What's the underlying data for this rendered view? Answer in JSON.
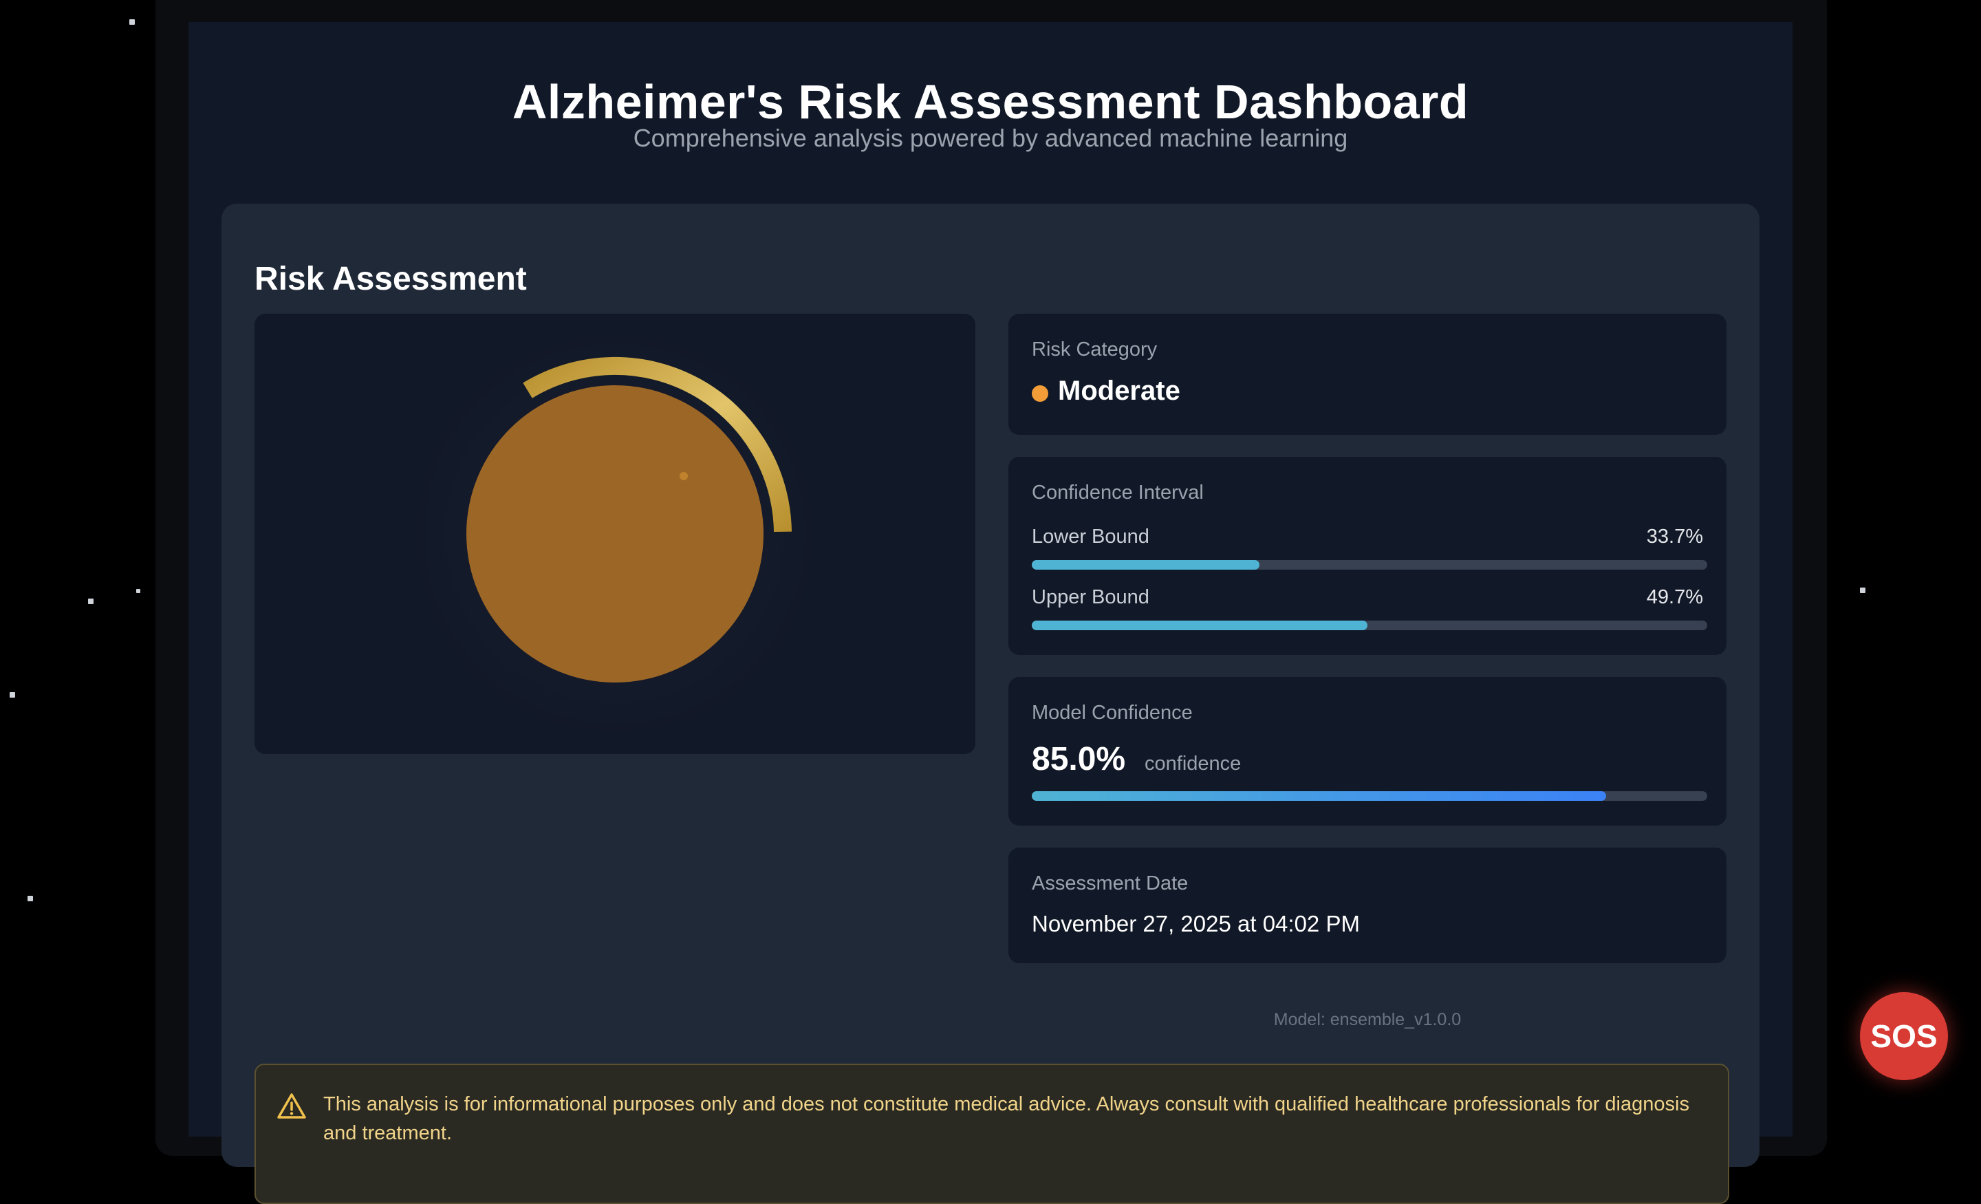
{
  "header": {
    "title": "Alzheimer's Risk Assessment Dashboard",
    "subtitle": "Comprehensive analysis powered by advanced machine learning"
  },
  "risk_assessment": {
    "title": "Risk Assessment",
    "risk_gauge": {
      "value_fraction": 0.5,
      "color": "#a0652a",
      "arc_color": "#c9a23e"
    },
    "risk_category": {
      "label": "Risk Category",
      "value": "Moderate",
      "color": "#f29d38"
    },
    "confidence_interval": {
      "label": "Confidence Interval",
      "lower": {
        "label": "Lower Bound",
        "value": "33.7%",
        "fraction": 0.337
      },
      "upper": {
        "label": "Upper Bound",
        "value": "49.7%",
        "fraction": 0.497
      }
    },
    "model_confidence": {
      "label": "Model Confidence",
      "value": "85.0%",
      "unit": "confidence",
      "fraction": 0.85
    },
    "assessment_date": {
      "label": "Assessment Date",
      "value": "November 27, 2025 at 04:02 PM"
    },
    "model_version": "Model: ensemble_v1.0.0"
  },
  "disclaimer": {
    "icon": "warning-icon",
    "text": "This analysis is for informational purposes only and does not constitute medical advice. Always consult with qualified healthcare professionals for diagnosis and treatment."
  },
  "sos_button": {
    "label": "SOS",
    "color": "#d83a34"
  }
}
